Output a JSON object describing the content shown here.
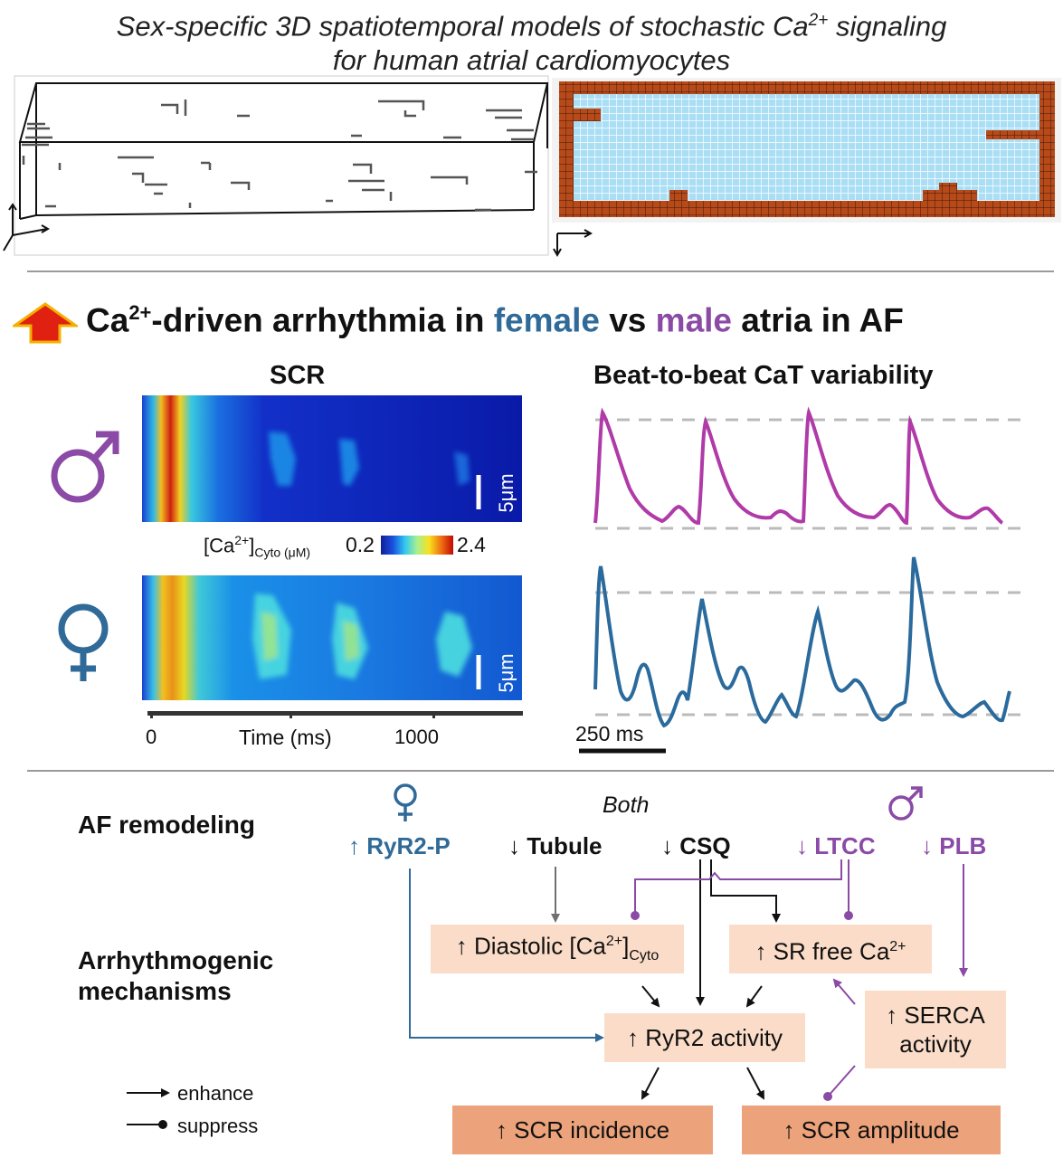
{
  "header": {
    "title_line1_pre": "Sex-specific 3D spatiotemporal models of stochastic Ca",
    "title_line1_sup": "2+",
    "title_line1_post": " signaling",
    "title_line2": "for human atrial cardiomyocytes"
  },
  "headline": {
    "ca": "Ca",
    "sup": "2+",
    "part1": "-driven arrhythmia in ",
    "female": "female",
    "vs": " vs ",
    "male": "male",
    "part2": " atria in AF"
  },
  "scr_panel": {
    "title": "SCR",
    "scale_label": "5μm",
    "colorbar_label_main": "[Ca",
    "colorbar_label_sup": "2+",
    "colorbar_label_close": "]",
    "colorbar_label_sub": "Cyto (μM)",
    "colorbar_min": "0.2",
    "colorbar_max": "2.4",
    "axis_label": "Time (ms)",
    "ticks": [
      "0",
      "1000"
    ]
  },
  "cat_panel": {
    "title": "Beat-to-beat CaT variability",
    "scale_label": "250 ms"
  },
  "symbols": {
    "male": "♂",
    "female": "♀"
  },
  "colors": {
    "female": "#2f6a98",
    "male": "#8a4aa6",
    "box_light": "#fadcc8",
    "box_dark": "#eca27a",
    "arrow_up": "#e02010"
  },
  "remodeling": {
    "row_label": "AF remodeling",
    "both_label": "Both",
    "ryr2p": "↑ RyR2-P",
    "tubule": "↓ Tubule",
    "csq": "↓ CSQ",
    "ltcc": "↓ LTCC",
    "plb": "↓ PLB"
  },
  "mechanisms": {
    "row_label_1": "Arrhythmogenic",
    "row_label_2": "mechanisms",
    "diastolic_pre": "↑ Diastolic [Ca",
    "diastolic_sup": "2+",
    "diastolic_close": "]",
    "diastolic_sub": "Cyto",
    "sr_pre": "↑ SR free Ca",
    "sr_sup": "2+",
    "serca_1": "↑ SERCA",
    "serca_2": "activity",
    "ryr2_activity": "↑ RyR2 activity",
    "scr_incidence": "↑ SCR incidence",
    "scr_amplitude": "↑ SCR amplitude"
  },
  "legend": {
    "enhance": "enhance",
    "suppress": "suppress"
  }
}
